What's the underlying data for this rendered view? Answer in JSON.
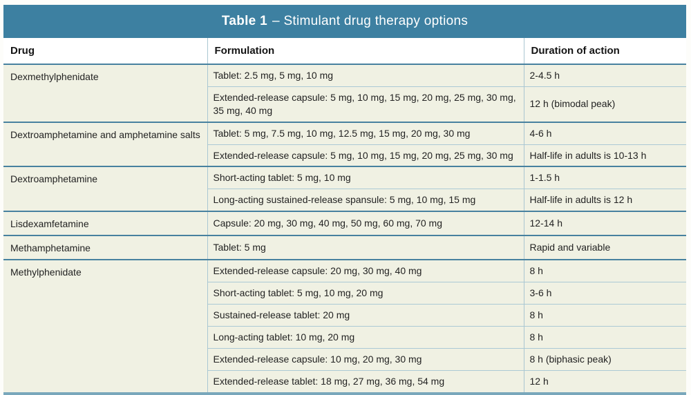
{
  "title": {
    "prefix": "Table 1",
    "rest": "– Stimulant drug therapy options"
  },
  "columns": {
    "drug": "Drug",
    "formulation": "Formulation",
    "duration": "Duration of action"
  },
  "groups": [
    {
      "drug": "Dexmethylphenidate",
      "rows": [
        {
          "formulation": "Tablet: 2.5 mg, 5 mg, 10 mg",
          "duration": "2-4.5 h"
        },
        {
          "formulation": "Extended-release capsule: 5 mg, 10 mg, 15 mg, 20 mg, 25 mg, 30 mg, 35 mg, 40 mg",
          "duration": "12 h (bimodal peak)"
        }
      ]
    },
    {
      "drug": "Dextroamphetamine and amphetamine salts",
      "rows": [
        {
          "formulation": "Tablet: 5 mg, 7.5 mg, 10 mg, 12.5 mg, 15 mg, 20 mg, 30 mg",
          "duration": "4-6 h"
        },
        {
          "formulation": "Extended-release capsule: 5 mg, 10 mg, 15 mg, 20 mg, 25 mg, 30 mg",
          "duration": "Half-life in adults is 10-13 h"
        }
      ]
    },
    {
      "drug": "Dextroamphetamine",
      "rows": [
        {
          "formulation": "Short-acting tablet: 5 mg, 10 mg",
          "duration": "1-1.5 h"
        },
        {
          "formulation": "Long-acting sustained-release spansule: 5 mg, 10 mg, 15 mg",
          "duration": "Half-life in adults is 12 h"
        }
      ]
    },
    {
      "drug": "Lisdexamfetamine",
      "rows": [
        {
          "formulation": "Capsule: 20 mg, 30 mg, 40 mg, 50 mg, 60 mg, 70 mg",
          "duration": "12-14 h"
        }
      ]
    },
    {
      "drug": "Methamphetamine",
      "rows": [
        {
          "formulation": "Tablet: 5 mg",
          "duration": "Rapid and variable"
        }
      ]
    },
    {
      "drug": "Methylphenidate",
      "rows": [
        {
          "formulation": "Extended-release capsule: 20 mg, 30 mg, 40 mg",
          "duration": "8 h"
        },
        {
          "formulation": "Short-acting tablet: 5 mg, 10 mg, 20 mg",
          "duration": "3-6 h"
        },
        {
          "formulation": "Sustained-release tablet: 20 mg",
          "duration": "8 h"
        },
        {
          "formulation": "Long-acting tablet: 10 mg, 20 mg",
          "duration": "8 h"
        },
        {
          "formulation": "Extended-release capsule: 10 mg, 20 mg, 30 mg",
          "duration": "8 h (biphasic peak)"
        },
        {
          "formulation": "Extended-release tablet: 18 mg, 27 mg, 36 mg, 54 mg",
          "duration": "12 h"
        }
      ]
    }
  ],
  "colors": {
    "title_bar_bg": "#3d80a1",
    "title_text": "#ffffff",
    "header_row_bg": "#ffffff",
    "body_cell_bg": "#f0f1e3",
    "group_border": "#47819f",
    "sub_border": "#abc9d5",
    "column_divider": "#a9c6d2",
    "bottom_rule": "#79a7bb"
  }
}
